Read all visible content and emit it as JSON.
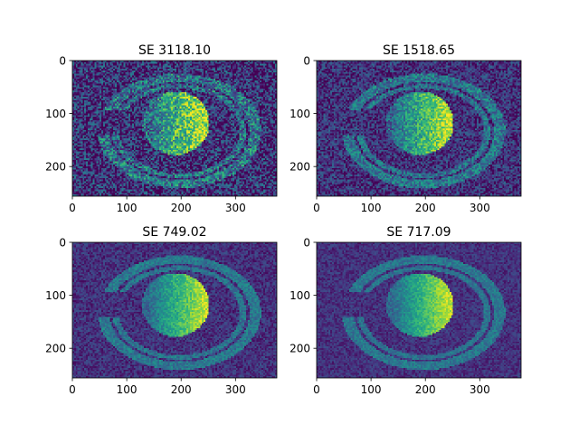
{
  "figure": {
    "colormap": "viridis",
    "panel_count": 4
  },
  "chart_data": [
    {
      "type": "heatmap",
      "title": "SE 3118.10",
      "xlabel": "",
      "ylabel": "",
      "xlim": [
        0,
        376
      ],
      "ylim": [
        256,
        0
      ],
      "xticks": [
        0,
        100,
        200,
        300
      ],
      "yticks": [
        0,
        100,
        200
      ],
      "noise": 0.3,
      "signal": 1.0
    },
    {
      "type": "heatmap",
      "title": "SE 1518.65",
      "xlabel": "",
      "ylabel": "",
      "xlim": [
        0,
        376
      ],
      "ylim": [
        256,
        0
      ],
      "xticks": [
        0,
        100,
        200,
        300
      ],
      "yticks": [
        0,
        100,
        200
      ],
      "noise": 0.2,
      "signal": 1.0
    },
    {
      "type": "heatmap",
      "title": "SE 749.02",
      "xlabel": "",
      "ylabel": "",
      "xlim": [
        0,
        376
      ],
      "ylim": [
        256,
        0
      ],
      "xticks": [
        0,
        100,
        200,
        300
      ],
      "yticks": [
        0,
        100,
        200
      ],
      "noise": 0.12,
      "signal": 1.0
    },
    {
      "type": "heatmap",
      "title": "SE 717.09",
      "xlabel": "",
      "ylabel": "",
      "xlim": [
        0,
        376
      ],
      "ylim": [
        256,
        0
      ],
      "xticks": [
        0,
        100,
        200,
        300
      ],
      "yticks": [
        0,
        100,
        200
      ],
      "noise": 0.1,
      "signal": 1.0
    }
  ]
}
